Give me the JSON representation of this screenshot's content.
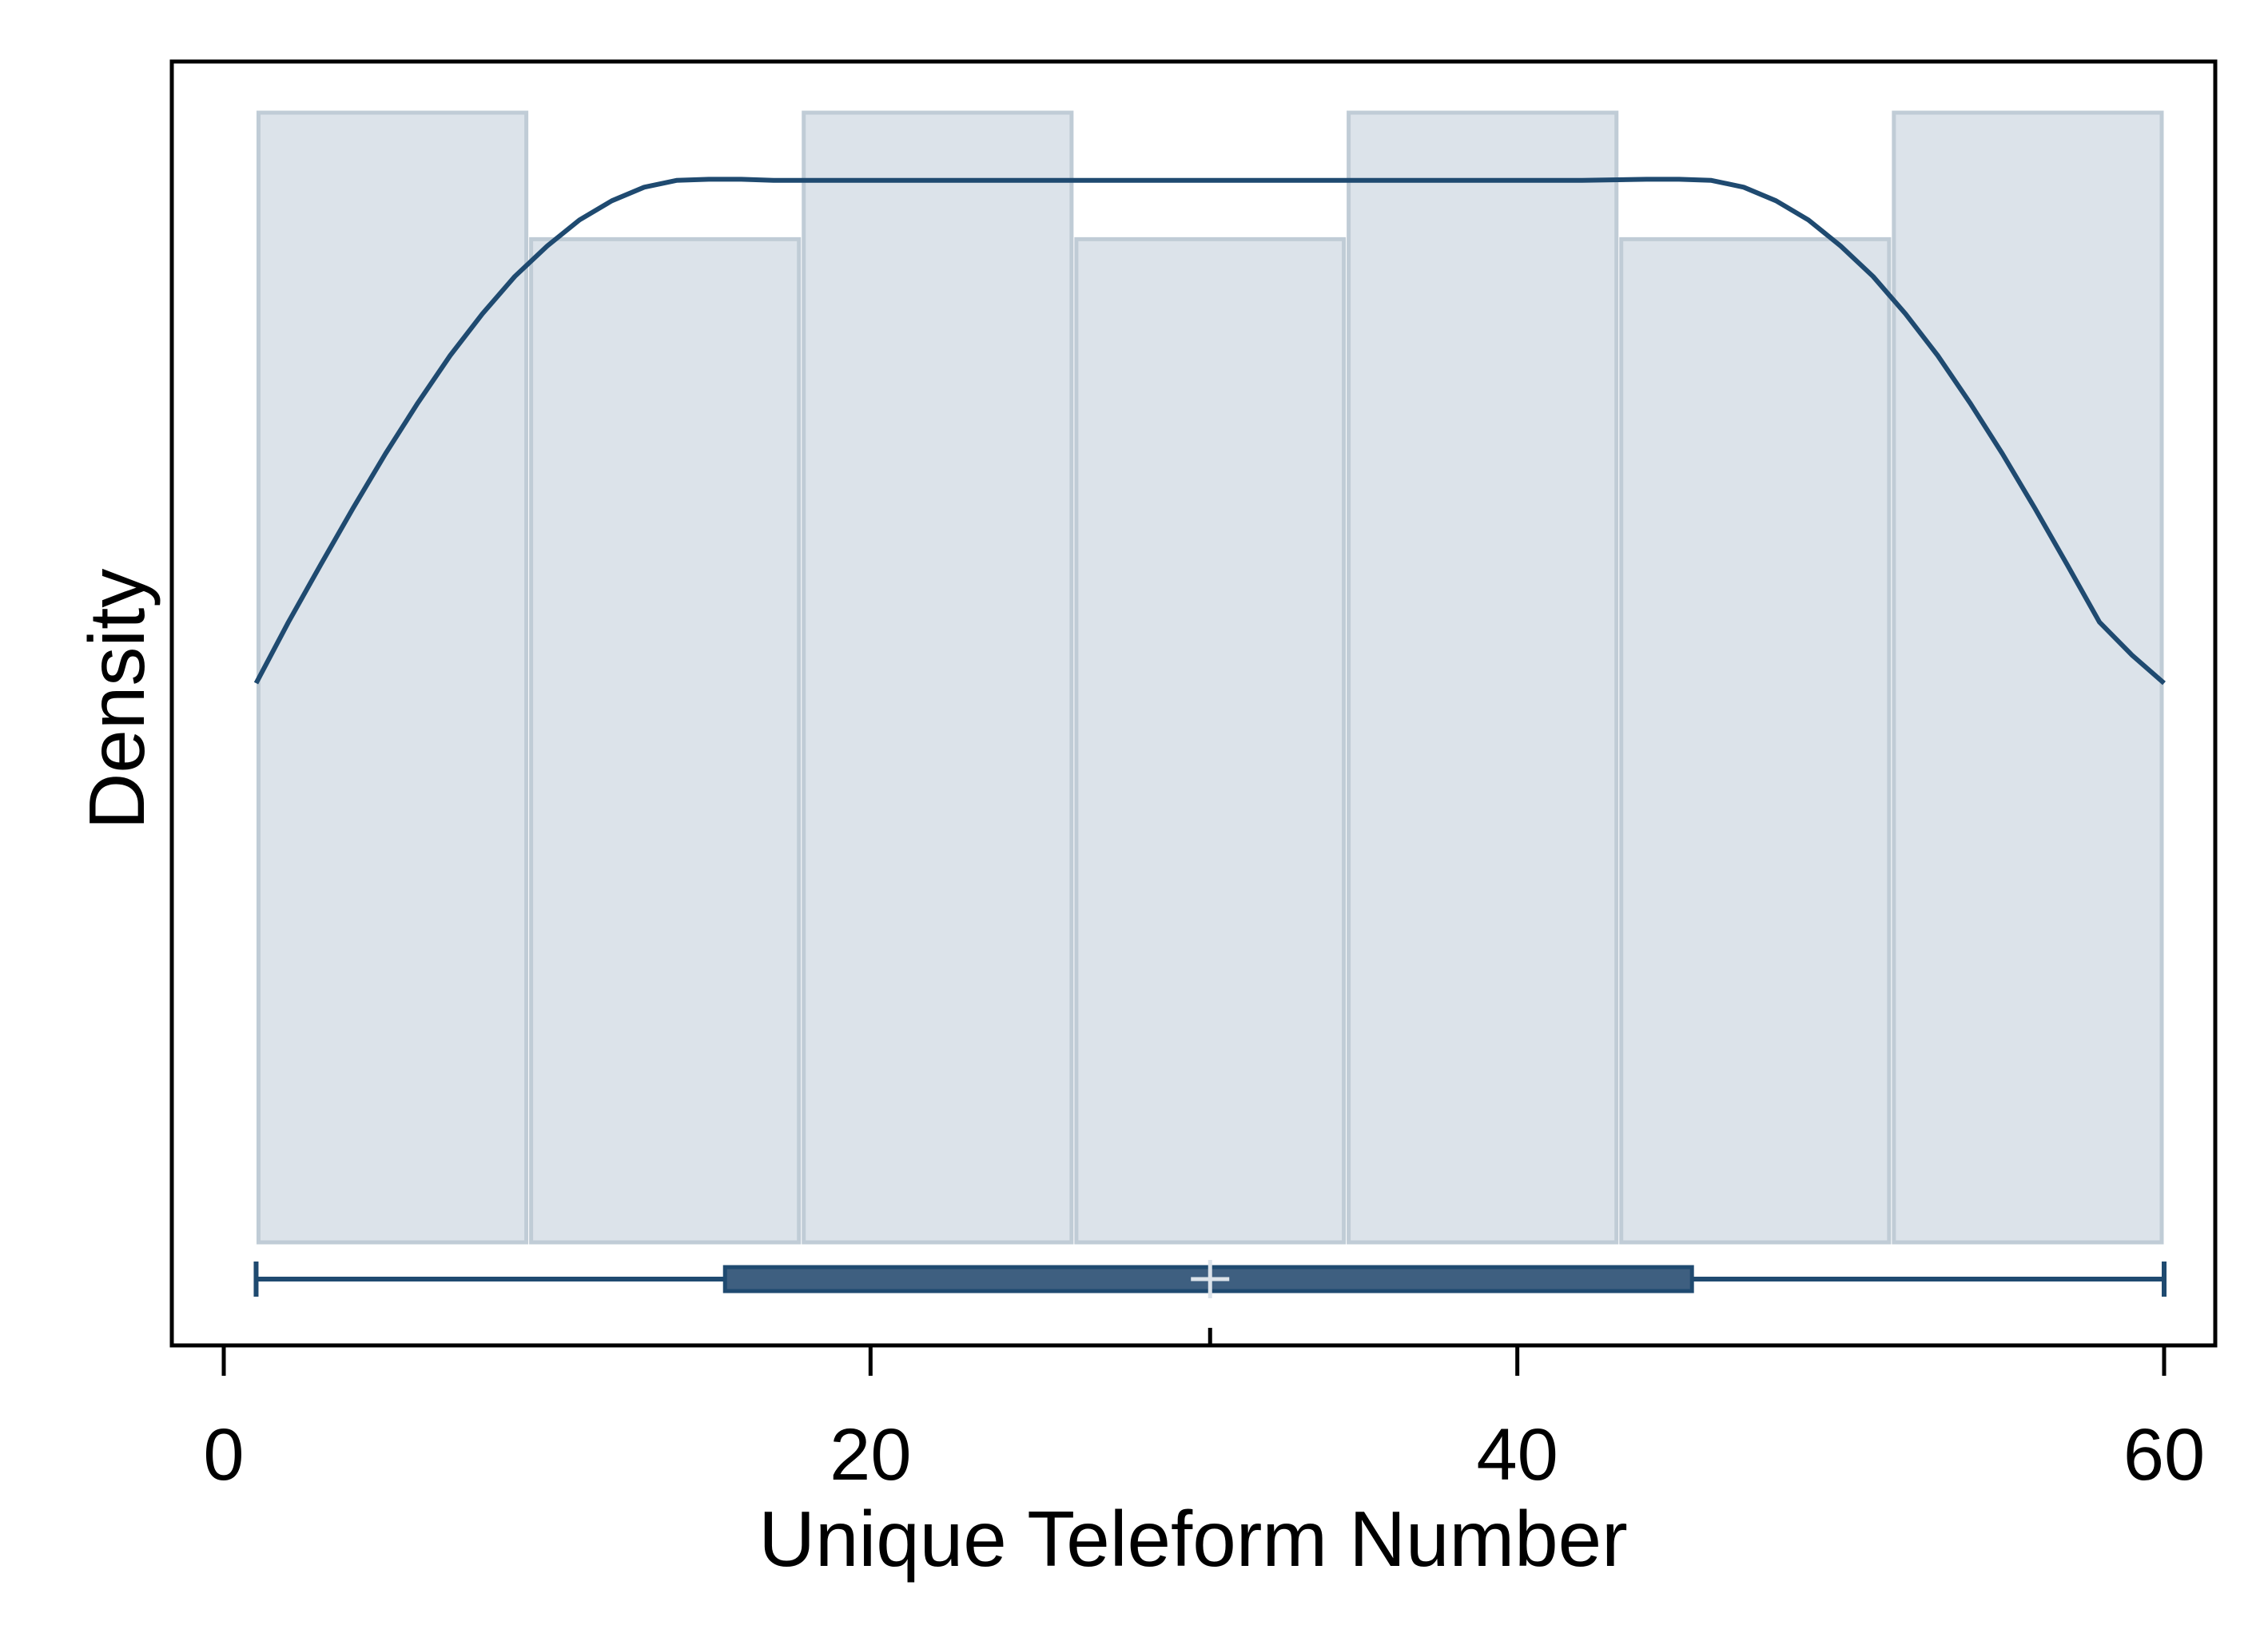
{
  "chart_data": {
    "type": "histogram",
    "xlabel": "Unique Teleform Number",
    "ylabel": "Density",
    "xlim": [
      0,
      60
    ],
    "x_ticks": [
      0,
      20,
      40,
      60
    ],
    "y_ticks": [],
    "grid": false,
    "histogram": {
      "bin_edges": [
        1,
        9.43,
        17.86,
        26.29,
        34.71,
        43.14,
        51.57,
        60
      ],
      "relative_heights": [
        1.0,
        0.888,
        1.0,
        0.888,
        1.0,
        0.888,
        1.0
      ]
    },
    "kde": {
      "x": [
        1,
        2,
        3,
        4,
        5,
        6,
        7,
        8,
        9,
        10,
        11,
        12,
        13,
        14,
        15,
        16,
        17,
        18,
        20,
        22,
        24,
        26,
        28,
        30,
        32,
        34,
        36,
        38,
        40,
        42,
        44,
        45,
        46,
        47,
        48,
        49,
        50,
        51,
        52,
        53,
        54,
        55,
        56,
        57,
        58,
        59,
        60
      ],
      "relative_density": [
        0.495,
        0.549,
        0.6,
        0.65,
        0.698,
        0.743,
        0.785,
        0.822,
        0.855,
        0.882,
        0.905,
        0.922,
        0.934,
        0.94,
        0.941,
        0.941,
        0.94,
        0.94,
        0.94,
        0.94,
        0.94,
        0.94,
        0.94,
        0.94,
        0.94,
        0.94,
        0.94,
        0.94,
        0.94,
        0.94,
        0.941,
        0.941,
        0.94,
        0.934,
        0.922,
        0.905,
        0.882,
        0.855,
        0.822,
        0.785,
        0.743,
        0.698,
        0.65,
        0.6,
        0.549,
        0.52,
        0.495
      ]
    },
    "boxplot": {
      "whisker_low": 1,
      "q1": 15.5,
      "mean": 30.5,
      "q3": 45.4,
      "whisker_high": 60
    },
    "colors": {
      "bar_fill": "#dce3ea",
      "bar_edge": "#c0ccd6",
      "line": "#1f4a70",
      "box_fill": "#3e5f80",
      "mean_marker": "#dce3ea"
    }
  }
}
